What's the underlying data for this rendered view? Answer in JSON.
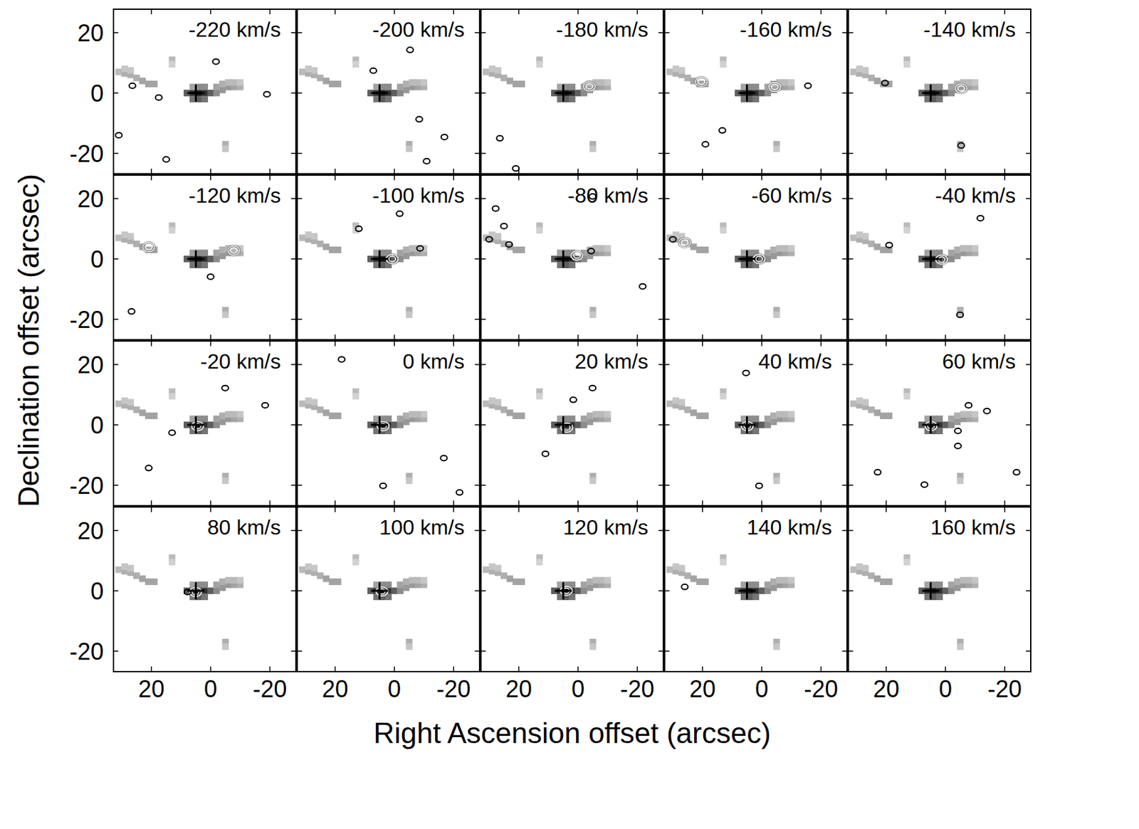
{
  "chart_data": {
    "type": "scatter",
    "xlabel": "Right Ascension offset (arcsec)",
    "ylabel": "Declination offset (arcsec)",
    "xlim": [
      33,
      -29
    ],
    "ylim": [
      -27,
      28
    ],
    "xticks": [
      20,
      0,
      -20
    ],
    "yticks": [
      -20,
      0,
      20
    ],
    "center": [
      5,
      0
    ],
    "background": [
      {
        "x": 8,
        "y": 0,
        "intensity": 0.7
      },
      {
        "x": 6,
        "y": 0,
        "intensity": 0.9
      },
      {
        "x": 4,
        "y": 0,
        "intensity": 1
      },
      {
        "x": 2,
        "y": 0,
        "intensity": 0.9
      },
      {
        "x": 0,
        "y": 0,
        "intensity": 0.7
      },
      {
        "x": 6,
        "y": -2,
        "intensity": 0.6
      },
      {
        "x": 4,
        "y": -2,
        "intensity": 0.7
      },
      {
        "x": 2,
        "y": -2,
        "intensity": 0.6
      },
      {
        "x": 6,
        "y": 2,
        "intensity": 0.4
      },
      {
        "x": 4,
        "y": 2,
        "intensity": 0.5
      },
      {
        "x": 2,
        "y": 2,
        "intensity": 0.5
      },
      {
        "x": -2,
        "y": 0,
        "intensity": 0.5
      },
      {
        "x": -4,
        "y": 1,
        "intensity": 0.45
      },
      {
        "x": -6,
        "y": 2,
        "intensity": 0.45
      },
      {
        "x": -8,
        "y": 2,
        "intensity": 0.4
      },
      {
        "x": -10,
        "y": 2,
        "intensity": 0.35
      },
      {
        "x": -2,
        "y": 2,
        "intensity": 0.4
      },
      {
        "x": -4,
        "y": 3,
        "intensity": 0.35
      },
      {
        "x": -6,
        "y": 3.5,
        "intensity": 0.3
      },
      {
        "x": -8,
        "y": 3.5,
        "intensity": 0.3
      },
      {
        "x": -10,
        "y": 3.5,
        "intensity": 0.25
      },
      {
        "x": 31,
        "y": 7,
        "intensity": 0.3
      },
      {
        "x": 29,
        "y": 6.5,
        "intensity": 0.35
      },
      {
        "x": 27,
        "y": 6,
        "intensity": 0.35
      },
      {
        "x": 25,
        "y": 5,
        "intensity": 0.35
      },
      {
        "x": 23,
        "y": 4,
        "intensity": 0.4
      },
      {
        "x": 21,
        "y": 3,
        "intensity": 0.4
      },
      {
        "x": 19,
        "y": 3,
        "intensity": 0.4
      },
      {
        "x": 29,
        "y": 8,
        "intensity": 0.25
      },
      {
        "x": 27,
        "y": 7.5,
        "intensity": 0.25
      },
      {
        "x": 13,
        "y": 11,
        "intensity": 0.3
      },
      {
        "x": 13,
        "y": 9.5,
        "intensity": 0.2
      },
      {
        "x": -5,
        "y": -17,
        "intensity": 0.35
      },
      {
        "x": -5,
        "y": -18.5,
        "intensity": 0.25
      }
    ],
    "panels": [
      {
        "title": "-220 km/s",
        "white": [],
        "black": [
          [
            -1.8,
            10.4
          ],
          [
            17.5,
            -1.5
          ],
          [
            26.4,
            2.4
          ],
          [
            31,
            -14
          ],
          [
            15,
            -22
          ],
          [
            -19,
            -0.4
          ]
        ]
      },
      {
        "title": "-200 km/s",
        "white": [],
        "black": [
          [
            -5.3,
            14.3
          ],
          [
            7.1,
            7.4
          ],
          [
            -8.4,
            -8.7
          ],
          [
            -16.9,
            -14.6
          ],
          [
            -10.9,
            -22.6
          ]
        ]
      },
      {
        "title": "-180 km/s",
        "white": [
          [
            -3.8,
            2.2
          ]
        ],
        "black": [
          [
            26.4,
            -15
          ],
          [
            21,
            -25
          ]
        ]
      },
      {
        "title": "-160 km/s",
        "white": [
          [
            -4.4,
            2
          ],
          [
            20.4,
            3.7
          ]
        ],
        "black": [
          [
            -15.6,
            2.4
          ],
          [
            13.3,
            -12.4
          ],
          [
            19,
            -17
          ]
        ]
      },
      {
        "title": "-140 km/s",
        "white": [
          [
            -5.3,
            1.5
          ]
        ],
        "black": [
          [
            20.4,
            3.3
          ],
          [
            -5.3,
            -17.4
          ]
        ]
      },
      {
        "title": "-120 km/s",
        "white": [
          [
            20.9,
            3.9
          ],
          [
            -7.8,
            2.8
          ]
        ],
        "black": [
          [
            0,
            -5.9
          ],
          [
            26.7,
            -17.4
          ]
        ]
      },
      {
        "title": "-100 km/s",
        "white": [
          [
            0.7,
            0
          ]
        ],
        "black": [
          [
            -8.7,
            3.5
          ],
          [
            -1.8,
            15
          ],
          [
            12,
            10
          ]
        ]
      },
      {
        "title": "-80 km/s",
        "white": [
          [
            0.4,
            1.1
          ]
        ],
        "black": [
          [
            27.8,
            16.7
          ],
          [
            25,
            10.9
          ],
          [
            30,
            6.5
          ],
          [
            23.3,
            4.8
          ],
          [
            -4.4,
            2.6
          ],
          [
            -21.8,
            -9.1
          ],
          [
            -4.9,
            20.7
          ]
        ]
      },
      {
        "title": "-60 km/s",
        "white": [
          [
            0.9,
            0
          ],
          [
            26,
            5.4
          ]
        ],
        "black": [
          [
            30,
            6.5
          ]
        ]
      },
      {
        "title": "-40 km/s",
        "white": [
          [
            1.3,
            -0.2
          ]
        ],
        "black": [
          [
            19,
            4.6
          ],
          [
            -11.8,
            13.5
          ],
          [
            -4.9,
            -18.5
          ]
        ]
      },
      {
        "title": "-20 km/s",
        "white": [
          [
            4.4,
            -0.4
          ]
        ],
        "black": [
          [
            -18.4,
            6.5
          ],
          [
            13,
            -2.6
          ],
          [
            20.9,
            -14.3
          ],
          [
            -4.9,
            12.2
          ]
        ]
      },
      {
        "title": "0 km/s",
        "white": [
          [
            3.8,
            -0.4
          ]
        ],
        "black": [
          [
            17.8,
            21.7
          ],
          [
            -16.7,
            -11
          ],
          [
            -22,
            -22.4
          ],
          [
            3.8,
            -20.2
          ]
        ]
      },
      {
        "title": "20 km/s",
        "white": [
          [
            3.8,
            -0.9
          ]
        ],
        "black": [
          [
            1.6,
            8.3
          ],
          [
            -4.9,
            12.2
          ],
          [
            11,
            -9.6
          ]
        ]
      },
      {
        "title": "40 km/s",
        "white": [
          [
            4.9,
            -0.4
          ]
        ],
        "black": [
          [
            5.3,
            17.2
          ],
          [
            0.9,
            -20.2
          ]
        ]
      },
      {
        "title": "60 km/s",
        "white": [
          [
            4.9,
            -0.4
          ]
        ],
        "black": [
          [
            -7.8,
            6.5
          ],
          [
            -4.2,
            -2
          ],
          [
            -4.2,
            -7
          ],
          [
            7.1,
            -19.8
          ],
          [
            22.9,
            -15.7
          ],
          [
            -24,
            -15.7
          ],
          [
            -14,
            4.6
          ]
        ]
      },
      {
        "title": "80 km/s",
        "white": [
          [
            5.1,
            -0.4
          ]
        ],
        "black": [
          [
            7.8,
            -0.4
          ]
        ]
      },
      {
        "title": "100 km/s",
        "white": [
          [
            4.2,
            -0.2
          ]
        ],
        "black": []
      },
      {
        "title": "120 km/s",
        "white": [
          [
            4,
            0
          ]
        ],
        "black": []
      },
      {
        "title": "140 km/s",
        "white": [],
        "black": [
          [
            26,
            1.3
          ]
        ]
      },
      {
        "title": "160 km/s",
        "white": [],
        "black": []
      }
    ]
  }
}
